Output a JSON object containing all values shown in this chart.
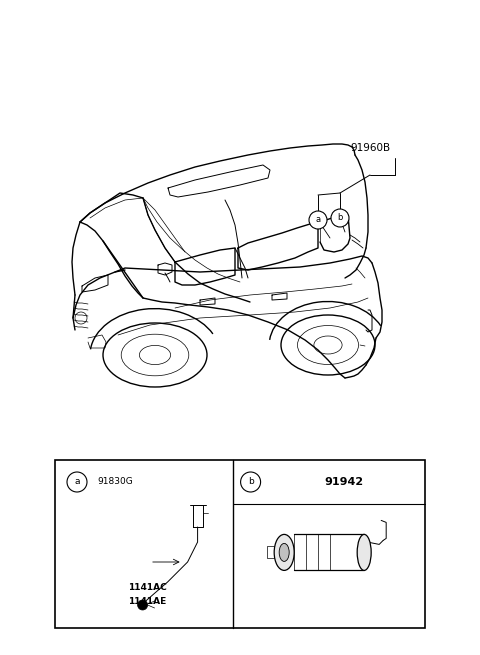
{
  "bg_color": "#ffffff",
  "fig_width": 4.8,
  "fig_height": 6.55,
  "dpi": 100,
  "label_91960B": "91960B",
  "label_a": "a",
  "label_b": "b",
  "label_91830G": "91830G",
  "label_1141AC": "1141AC",
  "label_1141AE": "1141AE",
  "label_91942": "91942"
}
